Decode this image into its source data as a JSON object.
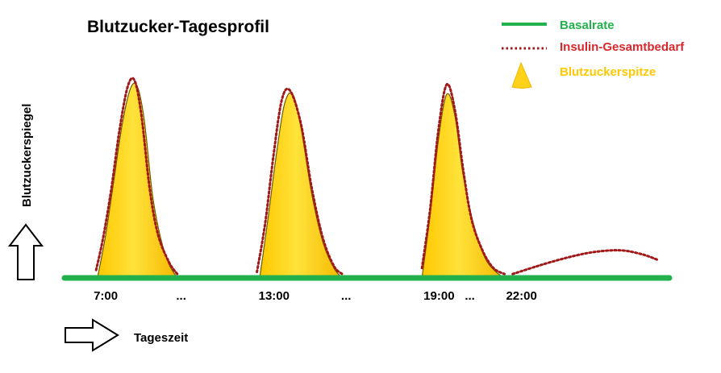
{
  "chart_data": {
    "type": "area",
    "title": "Blutzucker-Tagesprofil",
    "xlabel": "Tageszeit",
    "ylabel": "Blutzuckerspiegel",
    "grid": false,
    "legend_position": "top-right",
    "tick_labels": [
      {
        "label": "7:00",
        "x": 7.0
      },
      {
        "label": "...",
        "x": 10.0
      },
      {
        "label": "13:00",
        "x": 13.0
      },
      {
        "label": "...",
        "x": 16.0
      },
      {
        "label": "19:00",
        "x": 19.0
      },
      {
        "label": "...",
        "x": 20.5
      },
      {
        "label": "22:00",
        "x": 22.0
      }
    ],
    "x_range": [
      6.0,
      28.0
    ],
    "y_range": [
      0,
      1.0
    ],
    "series": [
      {
        "name": "Basalrate",
        "type": "line",
        "color": "#22b14c",
        "x": [
          6.0,
          28.0
        ],
        "y": [
          0.0,
          0.0
        ]
      },
      {
        "name": "Insulin-Gesamtbedarf",
        "type": "dotted-line",
        "color": "#a01818",
        "segments": [
          {
            "x": [
              7.15,
              7.4,
              7.7,
              8.0,
              8.3,
              8.55,
              8.8,
              9.1,
              9.4,
              9.8,
              10.1
            ],
            "y": [
              0.04,
              0.2,
              0.45,
              0.75,
              0.97,
              1.0,
              0.82,
              0.45,
              0.22,
              0.08,
              0.02
            ]
          },
          {
            "x": [
              13.0,
              13.3,
              13.6,
              13.9,
              14.2,
              14.6,
              15.0,
              15.4,
              15.8,
              16.1
            ],
            "y": [
              0.03,
              0.28,
              0.62,
              0.9,
              0.95,
              0.78,
              0.45,
              0.2,
              0.06,
              0.02
            ]
          },
          {
            "x": [
              19.0,
              19.3,
              19.6,
              19.9,
              20.2,
              20.5,
              20.8,
              21.2,
              21.6,
              22.0
            ],
            "y": [
              0.05,
              0.35,
              0.75,
              0.98,
              0.85,
              0.55,
              0.3,
              0.14,
              0.05,
              0.02
            ]
          },
          {
            "x": [
              22.3,
              23.2,
              24.2,
              25.2,
              26.2,
              27.0,
              27.6
            ],
            "y": [
              0.02,
              0.06,
              0.1,
              0.13,
              0.14,
              0.12,
              0.09
            ]
          }
        ]
      },
      {
        "name": "Blutzuckerspitze",
        "type": "area",
        "color": "#ffd21a",
        "peaks": [
          {
            "x": [
              7.2,
              7.5,
              7.8,
              8.1,
              8.4,
              8.65,
              8.9,
              9.2,
              9.5,
              9.8,
              10.1
            ],
            "y": [
              0.0,
              0.22,
              0.5,
              0.78,
              0.96,
              0.97,
              0.8,
              0.42,
              0.2,
              0.07,
              0.0
            ]
          },
          {
            "x": [
              13.1,
              13.4,
              13.7,
              14.0,
              14.3,
              14.6,
              15.0,
              15.4,
              15.8,
              16.1
            ],
            "y": [
              0.0,
              0.3,
              0.62,
              0.88,
              0.93,
              0.76,
              0.42,
              0.18,
              0.05,
              0.0
            ]
          },
          {
            "x": [
              19.0,
              19.3,
              19.6,
              19.9,
              20.2,
              20.5,
              20.9,
              21.3,
              21.7,
              22.0
            ],
            "y": [
              0.0,
              0.32,
              0.7,
              0.93,
              0.82,
              0.52,
              0.26,
              0.1,
              0.03,
              0.0
            ]
          }
        ]
      }
    ]
  }
}
